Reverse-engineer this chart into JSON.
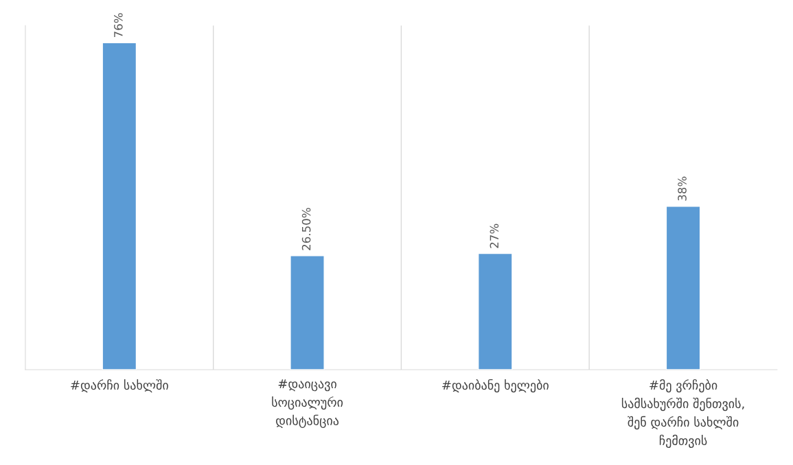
{
  "chart_data": {
    "type": "bar",
    "categories": [
      "#დარჩი სახლში",
      "#დაიცავი\nსოციალური\nდისტანცია",
      "#დაიბანე ხელები",
      "#მე ვრჩები\nსამსახურში შენთვის,\nშენ დარჩი სახლში\nჩემთვის"
    ],
    "values": [
      76,
      26.5,
      27,
      38
    ],
    "value_labels": [
      "76%",
      "26.50%",
      "27%",
      "38%"
    ],
    "color": "#5b9bd5",
    "ylim": [
      0,
      80
    ],
    "tick_labels": "x",
    "grid": "x",
    "legend": false
  }
}
